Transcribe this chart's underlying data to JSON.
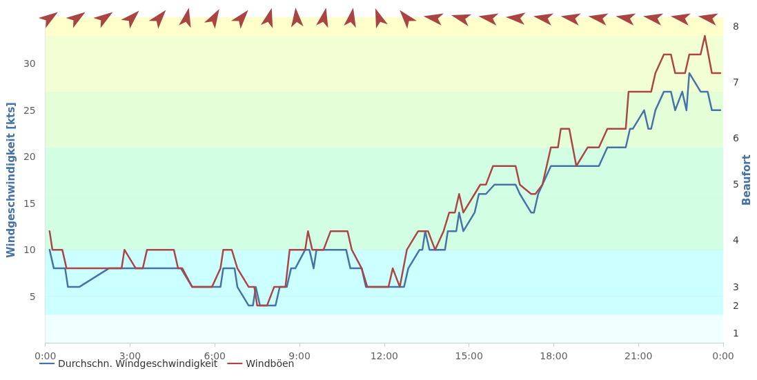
{
  "chart_data": {
    "type": "line",
    "xlabel": null,
    "ylabel": "Windgeschwindigkeit [kts]",
    "y2label": "Beaufort",
    "xlim": [
      0,
      24
    ],
    "xticks": [
      {
        "value": 0,
        "label": "0:00"
      },
      {
        "value": 3,
        "label": "3:00"
      },
      {
        "value": 6,
        "label": "6:00"
      },
      {
        "value": 9,
        "label": "9:00"
      },
      {
        "value": 12,
        "label": "12:00"
      },
      {
        "value": 15,
        "label": "15:00"
      },
      {
        "value": 18,
        "label": "18:00"
      },
      {
        "value": 21,
        "label": "21:00"
      },
      {
        "value": 24,
        "label": "0:00"
      }
    ],
    "ylim": [
      0,
      35
    ],
    "yticks": [
      5,
      10,
      15,
      20,
      25,
      30
    ],
    "grid": "y",
    "legend": "bottom left",
    "marker": "none",
    "line_style": "solid",
    "bands": [
      {
        "axis": "y",
        "from": 0,
        "to": 3,
        "color": "#f0ffff",
        "label": "1"
      },
      {
        "axis": "y",
        "from": 3,
        "to": 5,
        "color": "#ccffff",
        "label": "2"
      },
      {
        "axis": "y",
        "from": 5,
        "to": 10,
        "color": "#ccffff",
        "label": "3"
      },
      {
        "axis": "y",
        "from": 10,
        "to": 16,
        "color": "#d2ffe4",
        "label": "4"
      },
      {
        "axis": "y",
        "from": 16,
        "to": 21,
        "color": "#d2ffe4",
        "label": "5"
      },
      {
        "axis": "y",
        "from": 21,
        "to": 27,
        "color": "#e4ffd8",
        "label": "6"
      },
      {
        "axis": "y",
        "from": 27,
        "to": 33,
        "color": "#f2ffd4",
        "label": "7"
      },
      {
        "axis": "y",
        "from": 33,
        "to": 35,
        "color": "#ffffcc",
        "label": "8"
      }
    ],
    "series": [
      {
        "name": "Durchschn. Windgeschwindigkeit",
        "color": "#4572a7",
        "x": [
          0.15,
          0.3,
          0.7,
          0.8,
          1.2,
          2.25,
          4.8,
          5.2,
          5.9,
          6.2,
          6.3,
          6.7,
          6.8,
          7.2,
          7.35,
          7.45,
          7.6,
          8.15,
          8.3,
          8.55,
          8.7,
          8.85,
          9.2,
          9.35,
          9.5,
          9.6,
          10.65,
          10.8,
          11.2,
          11.35,
          12.7,
          12.85,
          13.25,
          13.35,
          13.45,
          13.6,
          14.15,
          14.25,
          14.55,
          14.65,
          14.8,
          15.2,
          15.35,
          15.6,
          15.9,
          16.65,
          16.8,
          17.2,
          17.3,
          17.45,
          17.9,
          19.6,
          19.9,
          20.55,
          20.7,
          20.8,
          21.2,
          21.35,
          21.45,
          21.6,
          21.9,
          22.15,
          22.3,
          22.55,
          22.7,
          22.8,
          23.2,
          23.45,
          23.6,
          23.9
        ],
        "values": [
          10,
          8,
          8,
          6,
          6,
          8,
          8,
          6,
          6,
          6,
          8,
          8,
          6,
          4,
          4,
          6,
          4,
          4,
          6,
          6,
          8,
          8,
          10,
          10,
          8,
          10,
          10,
          8,
          8,
          6,
          6,
          8,
          10,
          10,
          12,
          10,
          10,
          12,
          12,
          14,
          12,
          14,
          16,
          16,
          17,
          17,
          16,
          14,
          14,
          16,
          19,
          19,
          21,
          21,
          23,
          23,
          25,
          23,
          23,
          25,
          27,
          27,
          25,
          27,
          25,
          29,
          27,
          27,
          25,
          25
        ]
      },
      {
        "name": "Windböen",
        "color": "#aa4643",
        "x": [
          0.15,
          0.25,
          0.6,
          0.75,
          2.7,
          2.8,
          3.2,
          3.45,
          3.6,
          4.55,
          4.7,
          4.85,
          5.2,
          5.9,
          6.2,
          6.3,
          6.6,
          6.8,
          7.2,
          7.4,
          7.5,
          7.85,
          8.1,
          8.5,
          8.65,
          9.2,
          9.3,
          9.45,
          9.85,
          10.1,
          10.7,
          10.85,
          11.2,
          11.4,
          12.15,
          12.3,
          12.55,
          12.8,
          13.2,
          13.55,
          13.8,
          14.1,
          14.3,
          14.5,
          14.65,
          14.8,
          15.2,
          15.4,
          15.6,
          15.85,
          16.65,
          16.8,
          17.2,
          17.35,
          17.6,
          17.9,
          18.15,
          18.25,
          18.55,
          18.8,
          19.2,
          19.6,
          19.9,
          20.55,
          20.65,
          21.45,
          21.6,
          21.9,
          22.15,
          22.3,
          22.65,
          22.8,
          23.2,
          23.35,
          23.6,
          23.9
        ],
        "values": [
          12,
          10,
          10,
          8,
          8,
          10,
          8,
          8,
          10,
          10,
          8,
          8,
          6,
          6,
          8,
          10,
          10,
          8,
          6,
          6,
          4,
          4,
          6,
          6,
          10,
          10,
          12,
          10,
          10,
          12,
          12,
          10,
          8,
          6,
          6,
          8,
          6,
          10,
          12,
          12,
          10,
          12,
          14,
          14,
          16,
          14,
          16,
          17,
          17,
          19,
          19,
          17,
          16,
          16,
          17,
          21,
          21,
          23,
          23,
          19,
          21,
          21,
          23,
          23,
          27,
          27,
          29,
          31,
          31,
          29,
          29,
          31,
          31,
          33,
          29,
          29
        ]
      }
    ]
  }
}
